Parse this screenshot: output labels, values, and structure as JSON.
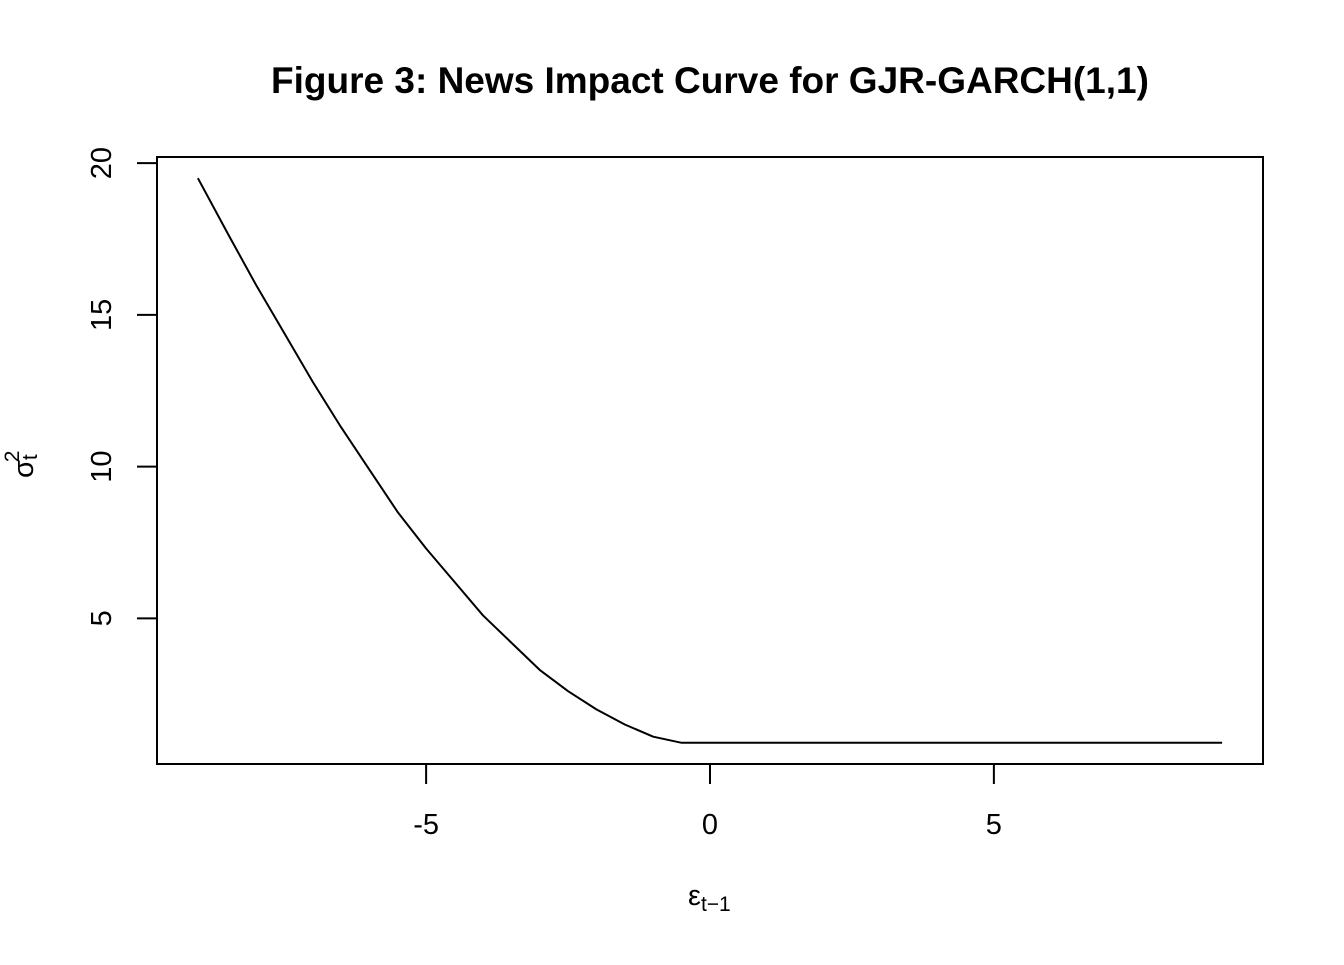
{
  "chart_data": {
    "type": "line",
    "title": "Figure 3: News Impact Curve for GJR-GARCH(1,1)",
    "xlabel": {
      "base": "ε",
      "sub": "t−1"
    },
    "ylabel": {
      "base": "σ",
      "sup": "2",
      "sub": "t"
    },
    "xlim": [
      -9.74,
      9.74
    ],
    "ylim": [
      0.2,
      20.2
    ],
    "x_ticks": [
      {
        "value": -5,
        "label": "-5"
      },
      {
        "value": 0,
        "label": "0"
      },
      {
        "value": 5,
        "label": "5"
      }
    ],
    "y_ticks": [
      {
        "value": 5,
        "label": "5"
      },
      {
        "value": 10,
        "label": "10"
      },
      {
        "value": 15,
        "label": "15"
      },
      {
        "value": 20,
        "label": "20"
      }
    ],
    "grid": false,
    "legend": "none",
    "line_color": "#000000",
    "series": [
      {
        "x": [
          -9.02,
          -8.5,
          -8.0,
          -7.5,
          -7.0,
          -6.5,
          -6.0,
          -5.5,
          -5.0,
          -4.5,
          -4.0,
          -3.5,
          -3.0,
          -2.5,
          -2.0,
          -1.5,
          -1.0,
          -0.5,
          0,
          1,
          2,
          3,
          4,
          5,
          6,
          7,
          8,
          9.02
        ],
        "y": [
          19.5,
          17.7,
          16.0,
          14.4,
          12.8,
          11.3,
          9.9,
          8.5,
          7.3,
          6.2,
          5.1,
          4.2,
          3.3,
          2.6,
          2.0,
          1.5,
          1.1,
          0.9,
          0.9,
          0.9,
          0.9,
          0.9,
          0.9,
          0.9,
          0.9,
          0.9,
          0.9,
          0.9
        ]
      }
    ]
  }
}
